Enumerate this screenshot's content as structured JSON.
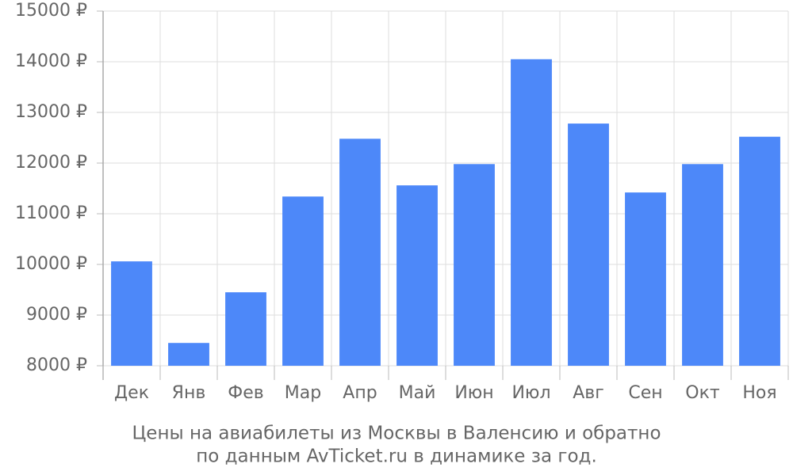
{
  "chart_data": {
    "type": "bar",
    "caption": [
      "Цены на авиабилеты из Москвы в Валенсию и обратно",
      "по данным AvTicket.ru в динамике за год."
    ],
    "categories": [
      "Дек",
      "Янв",
      "Фев",
      "Мар",
      "Апр",
      "Май",
      "Июн",
      "Июл",
      "Авг",
      "Сен",
      "Окт",
      "Ноя"
    ],
    "values": [
      10060,
      8450,
      9450,
      11340,
      12480,
      11560,
      11980,
      14050,
      12780,
      11420,
      11980,
      12520
    ],
    "color": "#4d88f9",
    "ylim": [
      8000,
      15000
    ],
    "yticks": [
      {
        "value": 8000,
        "label": "8000 ₽"
      },
      {
        "value": 9000,
        "label": "9000 ₽"
      },
      {
        "value": 10000,
        "label": "10000 ₽"
      },
      {
        "value": 11000,
        "label": "11000 ₽"
      },
      {
        "value": 12000,
        "label": "12000 ₽"
      },
      {
        "value": 13000,
        "label": "13000 ₽"
      },
      {
        "value": 14000,
        "label": "14000 ₽"
      },
      {
        "value": 15000,
        "label": "15000 ₽"
      }
    ],
    "grid": true
  }
}
